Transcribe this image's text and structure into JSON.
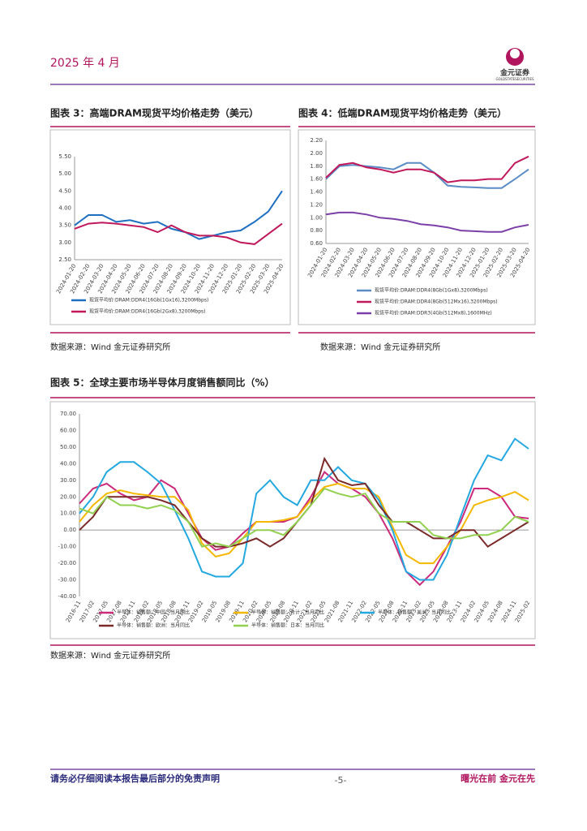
{
  "header": {
    "date": "2025 年 4 月",
    "logo_cn": "金元证券",
    "logo_en": "GOLDSTATESECURITIES"
  },
  "chart_data": [
    {
      "type": "line",
      "title": "图表 3：高端DRAM现货平均价格走势（美元）",
      "source": "数据来源：Wind  金元证券研究所",
      "categories": [
        "2024-01-20",
        "2024-02-20",
        "2024-03-20",
        "2024-04-20",
        "2024-05-20",
        "2024-06-20",
        "2024-07-20",
        "2024-08-20",
        "2024-09-20",
        "2024-10-20",
        "2024-11-20",
        "2024-12-20",
        "2025-01-20",
        "2025-02-20",
        "2025-03-20",
        "2025-04-20"
      ],
      "series": [
        {
          "name": "现货平均价:DRAM:DDR4(16Gb(1Gx16),3200Mbps)",
          "color": "#1f6fc1",
          "values": [
            3.5,
            3.8,
            3.8,
            3.6,
            3.65,
            3.55,
            3.6,
            3.4,
            3.3,
            3.1,
            3.2,
            3.3,
            3.35,
            3.6,
            3.9,
            4.5
          ]
        },
        {
          "name": "现货平均价:DRAM:DDR4(16Gb(2Gx8),3200Mbps)",
          "color": "#c0185a",
          "values": [
            3.4,
            3.55,
            3.58,
            3.55,
            3.5,
            3.45,
            3.3,
            3.5,
            3.3,
            3.2,
            3.2,
            3.15,
            3.0,
            2.95,
            3.25,
            3.55
          ]
        }
      ],
      "ylim": [
        2.5,
        5.5
      ],
      "yticks": [
        {
          "value": 2.5,
          "label": "2.50"
        },
        {
          "value": 3,
          "label": "3.00"
        },
        {
          "value": 3.5,
          "label": "3.50"
        },
        {
          "value": 4,
          "label": "4.00"
        },
        {
          "value": 4.5,
          "label": "4.50"
        },
        {
          "value": 5,
          "label": "5.00"
        },
        {
          "value": 5.5,
          "label": "5.50"
        }
      ],
      "grid": false
    },
    {
      "type": "line",
      "title": "图表 4：低端DRAM现货平均价格走势（美元）",
      "source": "数据来源：Wind  金元证券研究所",
      "categories": [
        "2024-01-20",
        "2024-02-20",
        "2024-03-20",
        "2024-04-20",
        "2024-05-20",
        "2024-06-20",
        "2024-07-20",
        "2024-08-20",
        "2024-09-20",
        "2024-10-20",
        "2024-11-20",
        "2024-12-20",
        "2025-01-20",
        "2025-02-20",
        "2025-03-20",
        "2025-04-20"
      ],
      "series": [
        {
          "name": "现货平均价:DRAM:DDR4(8Gb(1Gx8),3200Mbps)",
          "color": "#5b8cc5",
          "values": [
            1.6,
            1.8,
            1.82,
            1.8,
            1.78,
            1.75,
            1.85,
            1.85,
            1.7,
            1.5,
            1.48,
            1.47,
            1.46,
            1.46,
            1.6,
            1.75
          ]
        },
        {
          "name": "现货平均价:DRAM:DDR4(8Gb(512Mx16),3200Mbps)",
          "color": "#c0185a",
          "values": [
            1.62,
            1.82,
            1.85,
            1.78,
            1.75,
            1.7,
            1.75,
            1.75,
            1.7,
            1.55,
            1.58,
            1.58,
            1.6,
            1.6,
            1.85,
            1.95
          ]
        },
        {
          "name": "现货平均价:DRAM:DDR3(4Gb(512Mx8),1600MHz)",
          "color": "#7b3fa8",
          "values": [
            1.05,
            1.08,
            1.08,
            1.05,
            1.0,
            0.98,
            0.95,
            0.9,
            0.88,
            0.85,
            0.8,
            0.79,
            0.78,
            0.78,
            0.85,
            0.89
          ]
        }
      ],
      "ylim": [
        0.6,
        2.2
      ],
      "yticks": [
        {
          "value": 0.6,
          "label": "0.60"
        },
        {
          "value": 0.8,
          "label": "0.80"
        },
        {
          "value": 1,
          "label": "1.00"
        },
        {
          "value": 1.2,
          "label": "1.20"
        },
        {
          "value": 1.4,
          "label": "1.40"
        },
        {
          "value": 1.6,
          "label": "1.60"
        },
        {
          "value": 1.8,
          "label": "1.80"
        },
        {
          "value": 2,
          "label": "2.00"
        },
        {
          "value": 2.2,
          "label": "2.20"
        }
      ],
      "grid": false
    },
    {
      "type": "line",
      "title": "图表 5：全球主要市场半导体月度销售额同比（%）",
      "source": "数据来源：Wind  金元证券研究所",
      "categories": [
        "2016-11",
        "2017-02",
        "2017-05",
        "2017-08",
        "2017-11",
        "2018-02",
        "2018-05",
        "2018-08",
        "2018-11",
        "2019-02",
        "2019-05",
        "2019-08",
        "2019-11",
        "2020-02",
        "2020-05",
        "2020-08",
        "2020-11",
        "2021-02",
        "2021-05",
        "2021-08",
        "2021-11",
        "2022-02",
        "2022-05",
        "2022-08",
        "2022-11",
        "2023-02",
        "2023-05",
        "2023-08",
        "2023-11",
        "2024-02",
        "2024-05",
        "2024-08",
        "2024-11",
        "2025-02"
      ],
      "series": [
        {
          "name": "半导体：销售额：中国：当月同比",
          "color": "#cc2a7b",
          "values": [
            16,
            25,
            28,
            22,
            18,
            20,
            30,
            25,
            10,
            -5,
            -12,
            -10,
            -2,
            5,
            5,
            5,
            8,
            20,
            35,
            28,
            25,
            20,
            10,
            -5,
            -25,
            -33,
            -25,
            -10,
            5,
            25,
            25,
            20,
            8,
            7
          ]
        },
        {
          "name": "半导体：销售额：合计：当月同比",
          "color": "#f5b800",
          "values": [
            5,
            15,
            22,
            24,
            22,
            21,
            20,
            20,
            12,
            -8,
            -16,
            -14,
            -5,
            5,
            5,
            6,
            8,
            18,
            26,
            28,
            25,
            25,
            20,
            2,
            -15,
            -20,
            -20,
            -10,
            0,
            15,
            18,
            20,
            23,
            18
          ]
        },
        {
          "name": "半导体：销售额：美洲：当月同比",
          "color": "#23a8e0",
          "values": [
            10,
            20,
            35,
            41,
            41,
            35,
            28,
            12,
            -5,
            -25,
            -28,
            -28,
            -20,
            22,
            30,
            20,
            15,
            30,
            30,
            38,
            30,
            28,
            18,
            0,
            -25,
            -30,
            -30,
            -15,
            8,
            30,
            45,
            42,
            55,
            49
          ]
        },
        {
          "name": "半导体：销售额：欧洲：当月同比",
          "color": "#7b2a2a",
          "values": [
            0,
            8,
            20,
            20,
            20,
            20,
            18,
            15,
            5,
            -5,
            -10,
            -10,
            -8,
            -5,
            -10,
            -5,
            5,
            15,
            43,
            30,
            27,
            28,
            15,
            5,
            5,
            0,
            -5,
            -5,
            0,
            0,
            -10,
            -5,
            0,
            5
          ]
        },
        {
          "name": "半导体：销售额：日本：当月同比",
          "color": "#92d050",
          "values": [
            13,
            10,
            20,
            15,
            15,
            13,
            15,
            12,
            5,
            -10,
            -8,
            -10,
            -5,
            0,
            0,
            -3,
            5,
            15,
            25,
            22,
            20,
            22,
            10,
            5,
            5,
            5,
            -3,
            -5,
            -5,
            -3,
            -3,
            0,
            8,
            5
          ]
        }
      ],
      "ylim": [
        -40,
        70
      ],
      "yticks": [
        {
          "value": -40,
          "label": "-40.00"
        },
        {
          "value": -30,
          "label": "-30.00"
        },
        {
          "value": -20,
          "label": "-20.00"
        },
        {
          "value": -10,
          "label": "-10.00"
        },
        {
          "value": 0,
          "label": "0.00"
        },
        {
          "value": 10,
          "label": "10.00"
        },
        {
          "value": 20,
          "label": "20.00"
        },
        {
          "value": 30,
          "label": "30.00"
        },
        {
          "value": 40,
          "label": "40.00"
        },
        {
          "value": 50,
          "label": "50.00"
        },
        {
          "value": 60,
          "label": "60.00"
        },
        {
          "value": 70,
          "label": "70.00"
        }
      ],
      "grid": false
    }
  ],
  "footer": {
    "disclaimer": "请务必仔细阅读本报告最后部分的免责声明",
    "page": "-5-",
    "slogan": "曙光在前 金元在先"
  }
}
